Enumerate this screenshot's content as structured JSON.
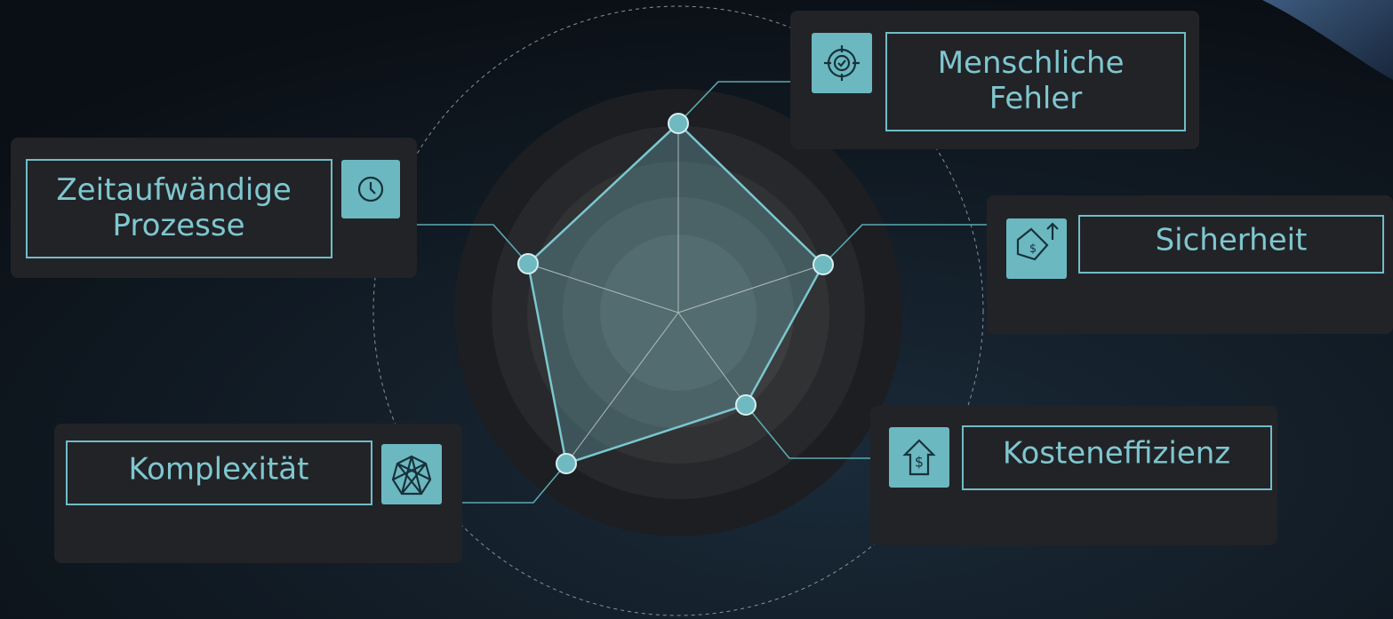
{
  "nodes": [
    {
      "label": "Menschliche Fehler"
    },
    {
      "label": "Zeitaufwändige Prozesse"
    },
    {
      "label": "Sicherheit"
    },
    {
      "label": "Komplexität"
    },
    {
      "label": "Kosteneffizienz"
    }
  ]
}
